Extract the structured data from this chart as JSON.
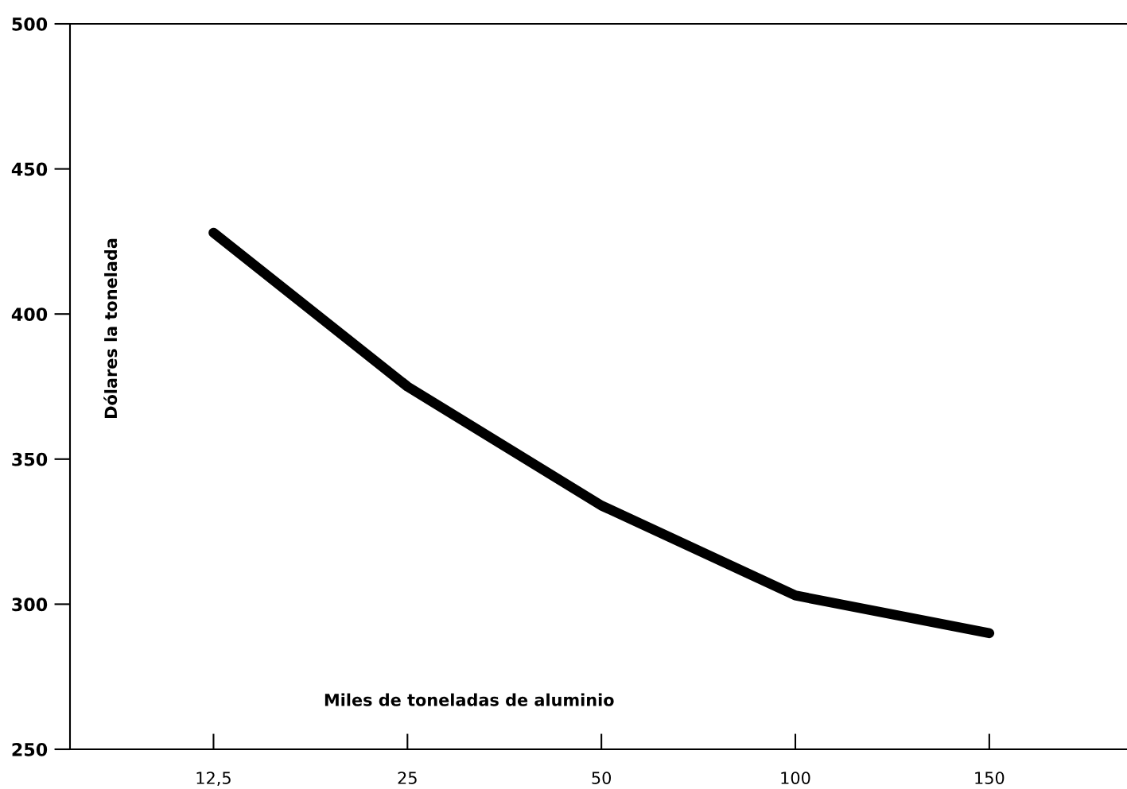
{
  "chart_data": {
    "type": "line",
    "xlabel": "Miles de toneladas de aluminio",
    "ylabel": "Dólares la tonelada",
    "categories": [
      "12,5",
      "25",
      "50",
      "100",
      "150"
    ],
    "series": [
      {
        "color": "#000000",
        "values": [
          428,
          375,
          334,
          303,
          290
        ]
      }
    ],
    "ylim": [
      250,
      500
    ],
    "yticks": [
      250,
      300,
      350,
      400,
      450,
      500
    ],
    "grid": false,
    "line_style": "solid"
  }
}
